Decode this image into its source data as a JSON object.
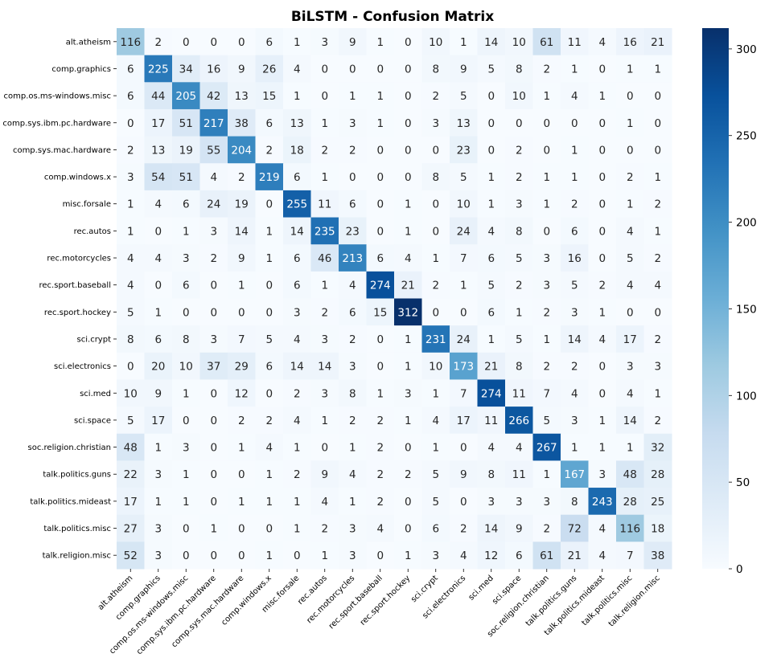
{
  "chart_data": {
    "type": "heatmap",
    "title": "BiLSTM - Confusion Matrix",
    "xlabel": "",
    "ylabel": "",
    "labels": [
      "alt.atheism",
      "comp.graphics",
      "comp.os.ms-windows.misc",
      "comp.sys.ibm.pc.hardware",
      "comp.sys.mac.hardware",
      "comp.windows.x",
      "misc.forsale",
      "rec.autos",
      "rec.motorcycles",
      "rec.sport.baseball",
      "rec.sport.hockey",
      "sci.crypt",
      "sci.electronics",
      "sci.med",
      "sci.space",
      "soc.religion.christian",
      "talk.politics.guns",
      "talk.politics.mideast",
      "talk.politics.misc",
      "talk.religion.misc"
    ],
    "matrix": [
      [
        116,
        2,
        0,
        0,
        0,
        6,
        1,
        3,
        9,
        1,
        0,
        10,
        1,
        14,
        10,
        61,
        11,
        4,
        16,
        21
      ],
      [
        6,
        225,
        34,
        16,
        9,
        26,
        4,
        0,
        0,
        0,
        0,
        8,
        9,
        5,
        8,
        2,
        1,
        0,
        1,
        1
      ],
      [
        6,
        44,
        205,
        42,
        13,
        15,
        1,
        0,
        1,
        1,
        0,
        2,
        5,
        0,
        10,
        1,
        4,
        1,
        0,
        0
      ],
      [
        0,
        17,
        51,
        217,
        38,
        6,
        13,
        1,
        3,
        1,
        0,
        3,
        13,
        0,
        0,
        0,
        0,
        0,
        1,
        0
      ],
      [
        2,
        13,
        19,
        55,
        204,
        2,
        18,
        2,
        2,
        0,
        0,
        0,
        23,
        0,
        2,
        0,
        1,
        0,
        0,
        0
      ],
      [
        3,
        54,
        51,
        4,
        2,
        219,
        6,
        1,
        0,
        0,
        0,
        8,
        5,
        1,
        2,
        1,
        1,
        0,
        2,
        1
      ],
      [
        1,
        4,
        6,
        24,
        19,
        0,
        255,
        11,
        6,
        0,
        1,
        0,
        10,
        1,
        3,
        1,
        2,
        0,
        1,
        2
      ],
      [
        1,
        0,
        1,
        3,
        14,
        1,
        14,
        235,
        23,
        0,
        1,
        0,
        24,
        4,
        8,
        0,
        6,
        0,
        4,
        1
      ],
      [
        4,
        4,
        3,
        2,
        9,
        1,
        6,
        46,
        213,
        6,
        4,
        1,
        7,
        6,
        5,
        3,
        16,
        0,
        5,
        2
      ],
      [
        4,
        0,
        6,
        0,
        1,
        0,
        6,
        1,
        4,
        274,
        21,
        2,
        1,
        5,
        2,
        3,
        5,
        2,
        4,
        4
      ],
      [
        5,
        1,
        0,
        0,
        0,
        0,
        3,
        2,
        6,
        15,
        312,
        0,
        0,
        6,
        1,
        2,
        3,
        1,
        0,
        0
      ],
      [
        8,
        6,
        8,
        3,
        7,
        5,
        4,
        3,
        2,
        0,
        1,
        231,
        24,
        1,
        5,
        1,
        14,
        4,
        17,
        2
      ],
      [
        0,
        20,
        10,
        37,
        29,
        6,
        14,
        14,
        3,
        0,
        1,
        10,
        173,
        21,
        8,
        2,
        2,
        0,
        3,
        3
      ],
      [
        10,
        9,
        1,
        0,
        12,
        0,
        2,
        3,
        8,
        1,
        3,
        1,
        7,
        274,
        11,
        7,
        4,
        0,
        4,
        1
      ],
      [
        5,
        17,
        0,
        0,
        2,
        2,
        4,
        1,
        2,
        2,
        1,
        4,
        17,
        11,
        266,
        5,
        3,
        1,
        14,
        2
      ],
      [
        48,
        1,
        3,
        0,
        1,
        4,
        1,
        0,
        1,
        2,
        0,
        1,
        0,
        4,
        4,
        267,
        1,
        1,
        1,
        32
      ],
      [
        22,
        3,
        1,
        0,
        0,
        1,
        2,
        9,
        4,
        2,
        2,
        5,
        9,
        8,
        11,
        1,
        167,
        3,
        48,
        28
      ],
      [
        17,
        1,
        1,
        0,
        1,
        1,
        1,
        4,
        1,
        2,
        0,
        5,
        0,
        3,
        3,
        3,
        8,
        243,
        28,
        25
      ],
      [
        27,
        3,
        0,
        1,
        0,
        0,
        1,
        2,
        3,
        4,
        0,
        6,
        2,
        14,
        9,
        2,
        72,
        4,
        116,
        18
      ],
      [
        52,
        3,
        0,
        0,
        0,
        1,
        0,
        1,
        3,
        0,
        1,
        3,
        4,
        12,
        6,
        61,
        21,
        4,
        7,
        38
      ]
    ],
    "colormap": "Blues",
    "colormap_stops": [
      "#f7fbff",
      "#deebf7",
      "#c6dbef",
      "#9ecae1",
      "#6baed6",
      "#4292c6",
      "#2171b5",
      "#08519c",
      "#08306b"
    ],
    "vmin": 0,
    "vmax": 312,
    "colorbar_ticks": [
      0,
      50,
      100,
      150,
      200,
      250,
      300
    ],
    "annotated": true,
    "grid": false
  }
}
